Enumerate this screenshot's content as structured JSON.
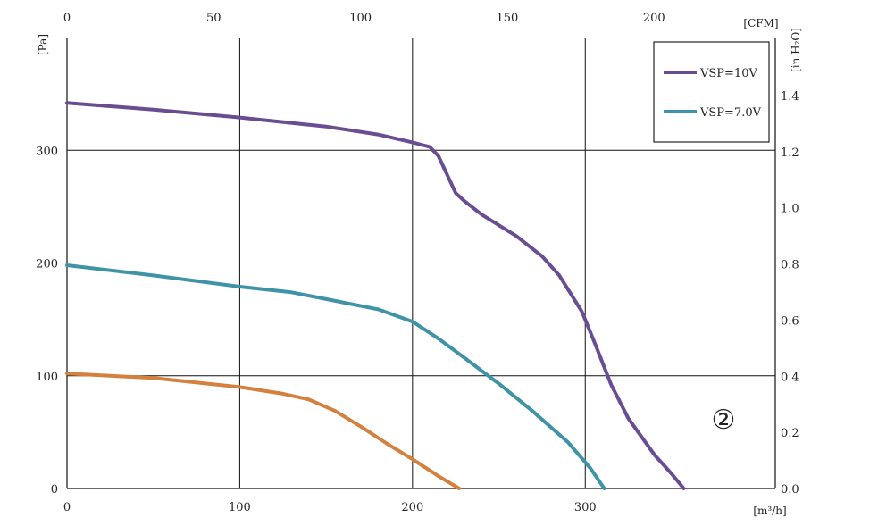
{
  "chart_data": {
    "type": "line",
    "x_unit": "[m³/h]",
    "x2_unit": "[CFM]",
    "y_unit": "[Pa]",
    "y2_unit": "[in H₂O]",
    "xlim": [
      0,
      410
    ],
    "ylim": [
      0,
      400
    ],
    "x_ticks": [
      0,
      100,
      200,
      300
    ],
    "y_ticks": [
      0,
      100,
      200,
      300
    ],
    "x2_ticks": [
      "0",
      "50",
      "100",
      "150",
      "200"
    ],
    "x2_tick_values_m3h": [
      0,
      84.95,
      169.9,
      254.85,
      339.8
    ],
    "y2_ticks": [
      "0.0",
      "0.2",
      "0.4",
      "0.6",
      "0.8",
      "1.0",
      "1.2",
      "1.4"
    ],
    "y2_tick_values_pa": [
      0,
      49.8,
      99.6,
      149.4,
      199.2,
      249.0,
      298.8,
      348.6
    ],
    "grid": true,
    "legend_position": "top-right",
    "annotation": "②",
    "series": [
      {
        "name": "VSP=10V",
        "color": "#6a4c93",
        "x": [
          0,
          50,
          100,
          150,
          180,
          200,
          210,
          215,
          225,
          230,
          240,
          260,
          275,
          285,
          298,
          305,
          315,
          325,
          340,
          350,
          357
        ],
        "y": [
          342,
          336,
          329,
          321,
          314,
          307,
          303,
          295,
          262,
          255,
          243,
          224,
          206,
          189,
          157,
          131,
          92,
          62,
          30,
          13,
          0
        ]
      },
      {
        "name": "VSP=7.0V",
        "color": "#3f93a6",
        "x": [
          0,
          50,
          100,
          130,
          150,
          180,
          200,
          215,
          230,
          250,
          270,
          290,
          303,
          311
        ],
        "y": [
          198,
          189,
          179,
          174,
          168,
          159,
          148,
          133,
          116,
          93,
          68,
          41,
          18,
          0
        ]
      },
      {
        "color": "#d4803e",
        "x": [
          0,
          50,
          100,
          125,
          140,
          155,
          170,
          185,
          200,
          215,
          227
        ],
        "y": [
          102,
          98,
          90,
          84,
          79,
          69,
          55,
          40,
          26,
          11,
          0
        ]
      }
    ]
  }
}
